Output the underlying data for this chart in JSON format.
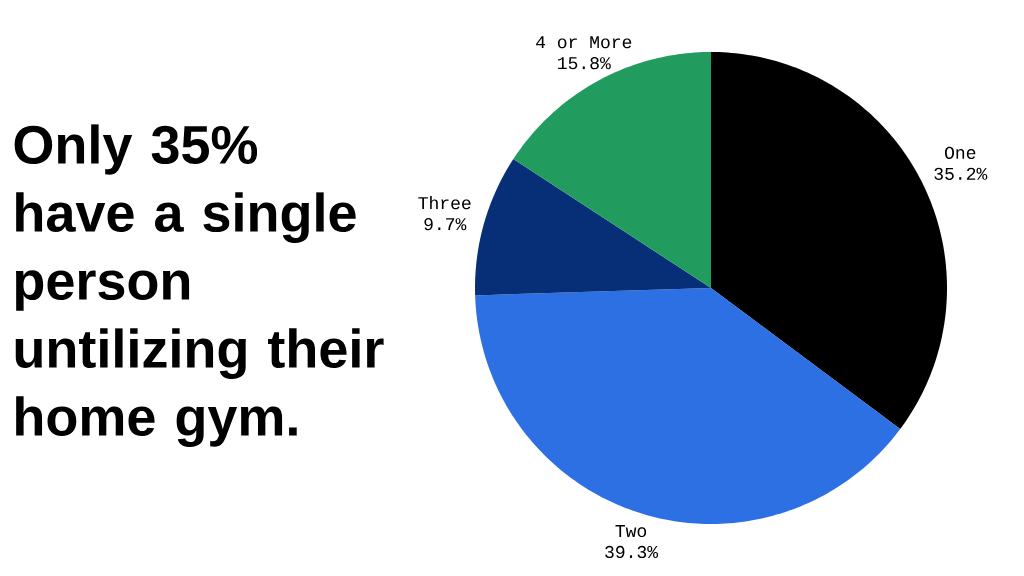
{
  "chart_data": {
    "type": "pie",
    "title": "Only 35% have a single person untilizing their home gym.",
    "categories": [
      "One",
      "Two",
      "Three",
      "4 or More"
    ],
    "values": [
      35.2,
      39.3,
      9.7,
      15.8
    ],
    "colors": [
      "#000000",
      "#2c70e4",
      "#062f78",
      "#229c5e"
    ],
    "value_labels": [
      "35.2%",
      "39.3%",
      "9.7%",
      "15.8%"
    ]
  }
}
